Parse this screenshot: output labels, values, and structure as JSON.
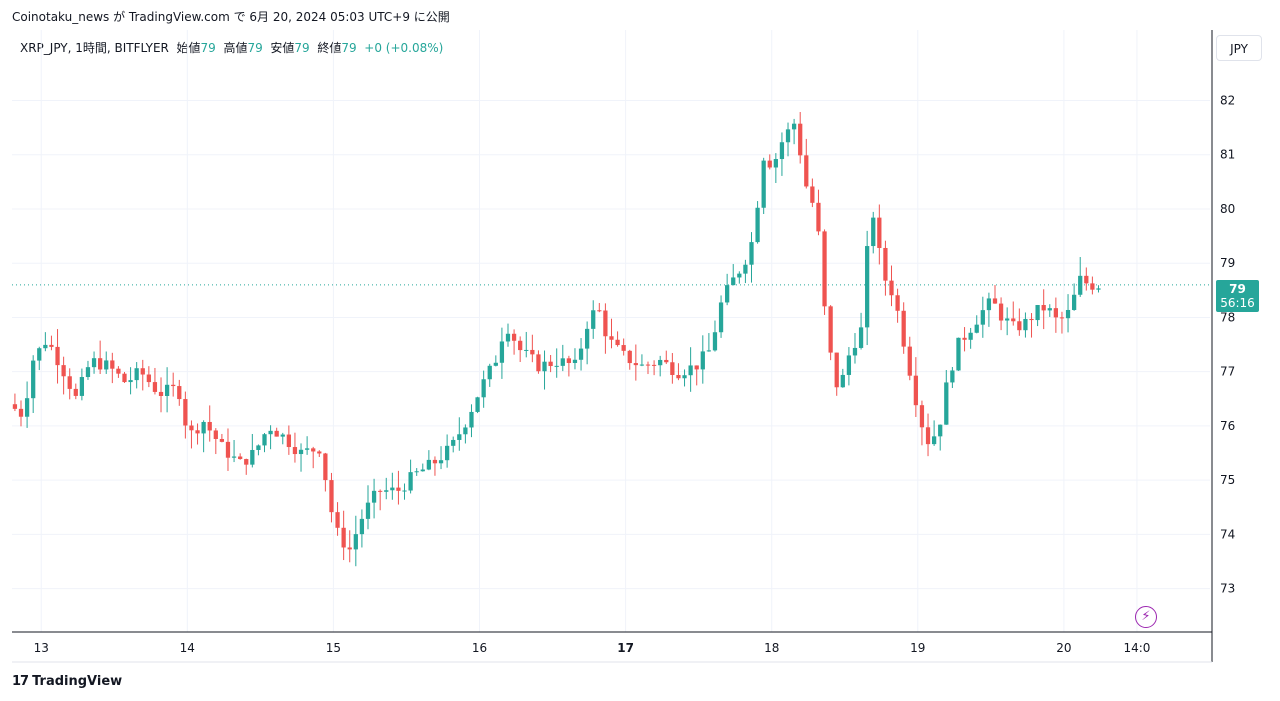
{
  "header": {
    "publish_line": "Coinotaku_news が TradingView.com で 6月 20, 2024 05:03 UTC+9 に公開"
  },
  "legend": {
    "symbol": "XRP_JPY, 1時間, BITFLYER",
    "open_label": "始値",
    "open_value": "79",
    "high_label": "高値",
    "high_value": "79",
    "low_label": "安値",
    "low_value": "79",
    "close_label": "終値",
    "close_value": "79",
    "change": "+0 (+0.08%)"
  },
  "currency_button": "JPY",
  "price_tag": {
    "price": "79",
    "countdown": "56:16"
  },
  "footer": {
    "brand_mark": "17",
    "brand": "TradingView"
  },
  "colors": {
    "up": "#26a69a",
    "down": "#ef5350",
    "grid": "#f0f3fa",
    "axis": "#131722",
    "current_line": "#26a69a"
  },
  "icons": {
    "replay": "lightning-icon"
  },
  "chart_data": {
    "type": "candlestick",
    "title": "",
    "xlabel": "",
    "ylabel": "",
    "ylim": [
      72.2,
      83.3
    ],
    "xlim": [
      12.8,
      21.0
    ],
    "grid": true,
    "current_price": 78.6,
    "y_ticks": [
      73,
      74,
      75,
      76,
      77,
      78,
      79,
      80,
      81,
      82
    ],
    "x_ticks": [
      {
        "value": 13,
        "label": "13"
      },
      {
        "value": 14,
        "label": "14"
      },
      {
        "value": 15,
        "label": "15"
      },
      {
        "value": 16,
        "label": "16"
      },
      {
        "value": 17,
        "label": "17",
        "bold": true
      },
      {
        "value": 18,
        "label": "18"
      },
      {
        "value": 19,
        "label": "19"
      },
      {
        "value": 20,
        "label": "20"
      },
      {
        "value": 20.5,
        "label": "14:0"
      }
    ],
    "anchors": [
      [
        12.82,
        76.4
      ],
      [
        12.92,
        76.2
      ],
      [
        12.98,
        77.2
      ],
      [
        13.08,
        77.6
      ],
      [
        13.18,
        77.1
      ],
      [
        13.28,
        76.5
      ],
      [
        13.38,
        77.2
      ],
      [
        13.5,
        77.1
      ],
      [
        13.62,
        76.8
      ],
      [
        13.72,
        77.0
      ],
      [
        13.85,
        76.6
      ],
      [
        13.98,
        76.7
      ],
      [
        14.05,
        75.8
      ],
      [
        14.15,
        76.1
      ],
      [
        14.28,
        75.6
      ],
      [
        14.4,
        75.3
      ],
      [
        14.5,
        75.5
      ],
      [
        14.6,
        76.0
      ],
      [
        14.7,
        75.8
      ],
      [
        14.82,
        75.5
      ],
      [
        14.95,
        75.6
      ],
      [
        15.05,
        74.1
      ],
      [
        15.15,
        73.7
      ],
      [
        15.25,
        74.4
      ],
      [
        15.35,
        74.8
      ],
      [
        15.48,
        74.8
      ],
      [
        15.6,
        75.1
      ],
      [
        15.72,
        75.3
      ],
      [
        15.85,
        75.6
      ],
      [
        15.95,
        76.1
      ],
      [
        16.05,
        76.7
      ],
      [
        16.15,
        77.2
      ],
      [
        16.22,
        77.9
      ],
      [
        16.32,
        77.4
      ],
      [
        16.45,
        77.1
      ],
      [
        16.58,
        77.2
      ],
      [
        16.7,
        77.1
      ],
      [
        16.78,
        77.9
      ],
      [
        16.85,
        78.2
      ],
      [
        16.92,
        77.6
      ],
      [
        17.02,
        77.3
      ],
      [
        17.15,
        77.1
      ],
      [
        17.28,
        77.2
      ],
      [
        17.4,
        77.0
      ],
      [
        17.52,
        77.1
      ],
      [
        17.62,
        77.4
      ],
      [
        17.7,
        78.3
      ],
      [
        17.78,
        78.7
      ],
      [
        17.85,
        79.0
      ],
      [
        17.92,
        79.5
      ],
      [
        17.98,
        81.0
      ],
      [
        18.05,
        80.8
      ],
      [
        18.12,
        81.3
      ],
      [
        18.2,
        81.6
      ],
      [
        18.28,
        80.4
      ],
      [
        18.35,
        79.9
      ],
      [
        18.42,
        77.6
      ],
      [
        18.5,
        76.6
      ],
      [
        18.58,
        77.4
      ],
      [
        18.66,
        77.8
      ],
      [
        18.72,
        80.2
      ],
      [
        18.8,
        78.8
      ],
      [
        18.88,
        78.4
      ],
      [
        18.95,
        77.5
      ],
      [
        19.02,
        76.6
      ],
      [
        19.1,
        75.7
      ],
      [
        19.18,
        75.9
      ],
      [
        19.25,
        76.9
      ],
      [
        19.32,
        77.5
      ],
      [
        19.4,
        77.8
      ],
      [
        19.48,
        78.1
      ],
      [
        19.55,
        78.3
      ],
      [
        19.62,
        78.0
      ],
      [
        19.7,
        77.8
      ],
      [
        19.78,
        77.9
      ],
      [
        19.85,
        78.1
      ],
      [
        19.92,
        78.2
      ],
      [
        20.0,
        77.9
      ],
      [
        20.08,
        78.1
      ],
      [
        20.15,
        78.7
      ],
      [
        20.22,
        78.6
      ],
      [
        20.26,
        78.6
      ]
    ]
  }
}
